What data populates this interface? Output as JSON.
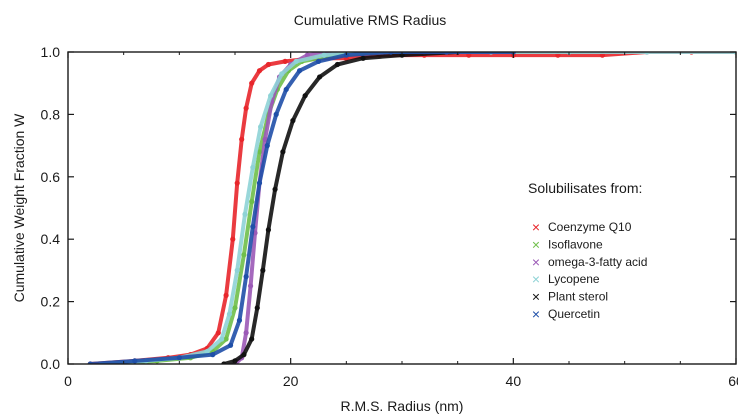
{
  "chart_data": {
    "type": "scatter",
    "title": "Cumulative RMS Radius",
    "xlabel": "R.M.S. Radius (nm)",
    "ylabel": "Cumulative Weight Fraction W",
    "xlim": [
      0,
      60
    ],
    "ylim": [
      0,
      1.0
    ],
    "x_ticks": [
      0,
      20,
      40,
      60
    ],
    "y_ticks": [
      0.0,
      0.2,
      0.4,
      0.6,
      0.8,
      1.0
    ],
    "x_tick_labels": [
      "0",
      "20",
      "40",
      "60"
    ],
    "y_tick_labels": [
      "0.0",
      "0.2",
      "0.4",
      "0.6",
      "0.8",
      "1.0"
    ],
    "grid": false,
    "legend_title": "Solubilisates from:",
    "legend_position": "right",
    "series": [
      {
        "name": "Coenzyme Q10",
        "color": "#e8262b",
        "x": [
          2,
          6,
          9,
          11,
          12.5,
          13.5,
          14.2,
          14.8,
          15.2,
          15.6,
          16.0,
          16.5,
          17.2,
          18.0,
          19.5,
          22,
          25,
          28,
          32,
          36,
          40,
          44,
          48,
          52,
          56,
          60
        ],
        "y": [
          0.0,
          0.01,
          0.02,
          0.03,
          0.05,
          0.1,
          0.22,
          0.4,
          0.58,
          0.72,
          0.82,
          0.9,
          0.94,
          0.96,
          0.97,
          0.98,
          0.98,
          0.99,
          0.99,
          0.99,
          0.99,
          0.99,
          0.99,
          1.0,
          1.0,
          1.0
        ]
      },
      {
        "name": "Isoflavone",
        "color": "#6fbf4a",
        "x": [
          4,
          8,
          11,
          13,
          14.2,
          15.0,
          15.8,
          16.5,
          17.2,
          18.0,
          18.8,
          19.8,
          21,
          24,
          28
        ],
        "y": [
          0.0,
          0.01,
          0.02,
          0.04,
          0.08,
          0.18,
          0.35,
          0.52,
          0.68,
          0.8,
          0.88,
          0.94,
          0.97,
          0.99,
          1.0
        ]
      },
      {
        "name": "omega-3-fatty acid",
        "color": "#9b59b6",
        "x": [
          15.0,
          15.6,
          16.0,
          16.4,
          16.8,
          17.2,
          17.7,
          18.3,
          19.0,
          20.0,
          21.5,
          24
        ],
        "y": [
          0.0,
          0.02,
          0.1,
          0.25,
          0.42,
          0.58,
          0.72,
          0.84,
          0.92,
          0.96,
          0.99,
          1.0
        ]
      },
      {
        "name": "Lycopene",
        "color": "#8ed3d6",
        "x": [
          3,
          7,
          10,
          12.5,
          13.8,
          14.5,
          15.2,
          15.9,
          16.6,
          17.3,
          18.2,
          19.2,
          20.5,
          23,
          27,
          32,
          38,
          45,
          52,
          60
        ],
        "y": [
          0.0,
          0.01,
          0.02,
          0.04,
          0.08,
          0.16,
          0.3,
          0.48,
          0.63,
          0.76,
          0.86,
          0.93,
          0.97,
          0.99,
          1.0,
          1.0,
          1.0,
          1.0,
          1.0,
          1.0
        ]
      },
      {
        "name": "Plant sterol",
        "color": "#111111",
        "x": [
          14.0,
          15.0,
          15.8,
          16.5,
          17.0,
          17.5,
          18.0,
          18.6,
          19.3,
          20.2,
          21.3,
          22.6,
          24.2,
          26.5,
          30,
          35
        ],
        "y": [
          0.0,
          0.01,
          0.03,
          0.08,
          0.18,
          0.3,
          0.43,
          0.56,
          0.68,
          0.78,
          0.86,
          0.92,
          0.96,
          0.98,
          0.99,
          1.0
        ]
      },
      {
        "name": "Quercetin",
        "color": "#1f4fa8",
        "x": [
          2,
          6,
          10,
          13,
          14.6,
          15.4,
          16.0,
          16.6,
          17.2,
          17.9,
          18.7,
          19.6,
          20.8,
          22.5,
          25,
          29,
          34,
          40
        ],
        "y": [
          0.0,
          0.01,
          0.02,
          0.03,
          0.06,
          0.14,
          0.28,
          0.44,
          0.58,
          0.7,
          0.8,
          0.88,
          0.94,
          0.97,
          0.99,
          1.0,
          1.0,
          1.0
        ]
      }
    ]
  }
}
